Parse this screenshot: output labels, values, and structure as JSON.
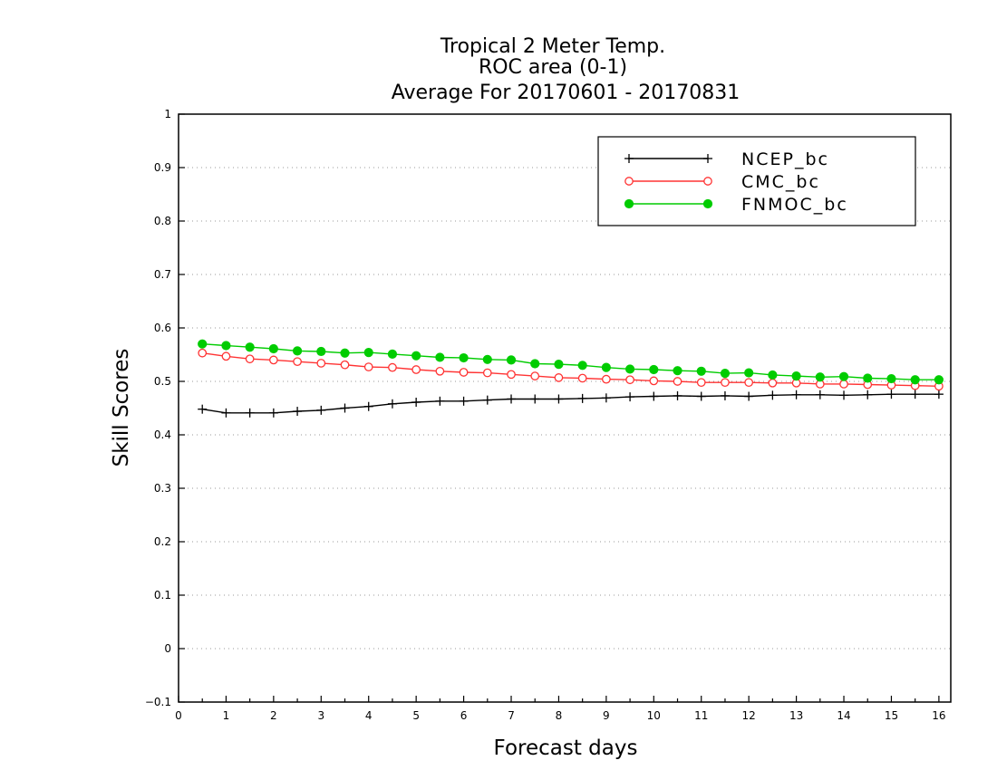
{
  "chart_data": {
    "type": "line",
    "title_lines": [
      "Tropical 2 Meter Temp.",
      "ROC area (0-1)",
      "Average For 20170601 - 20170831"
    ],
    "xlabel": "Forecast days",
    "ylabel": "Skill Scores",
    "xlim": [
      0,
      16.25
    ],
    "ylim": [
      -0.1,
      1
    ],
    "x_ticks": [
      "0",
      "1",
      "2",
      "3",
      "4",
      "5",
      "6",
      "7",
      "8",
      "9",
      "10",
      "11",
      "12",
      "13",
      "14",
      "15",
      "16"
    ],
    "y_ticks": [
      "−0.1",
      "0",
      "0.1",
      "0.2",
      "0.3",
      "0.4",
      "0.5",
      "0.6",
      "0.7",
      "0.8",
      "0.9",
      "1"
    ],
    "grid": "horizontal dotted",
    "legend_position": "top-right",
    "x": [
      0.5,
      1,
      1.5,
      2,
      2.5,
      3,
      3.5,
      4,
      4.5,
      5,
      5.5,
      6,
      6.5,
      7,
      7.5,
      8,
      8.5,
      9,
      9.5,
      10,
      10.5,
      11,
      11.5,
      12,
      12.5,
      13,
      13.5,
      14,
      14.5,
      15,
      15.5,
      16
    ],
    "series": [
      {
        "name": "NCEP_bc",
        "color": "#000000",
        "marker": "plus",
        "values": [
          0.448,
          0.441,
          0.441,
          0.441,
          0.444,
          0.446,
          0.45,
          0.453,
          0.458,
          0.461,
          0.463,
          0.463,
          0.465,
          0.467,
          0.467,
          0.467,
          0.468,
          0.469,
          0.471,
          0.472,
          0.473,
          0.472,
          0.473,
          0.472,
          0.474,
          0.475,
          0.475,
          0.474,
          0.475,
          0.476,
          0.476,
          0.476
        ]
      },
      {
        "name": "CMC_bc",
        "color": "#ff3333",
        "marker": "open-circle",
        "values": [
          0.553,
          0.547,
          0.542,
          0.54,
          0.537,
          0.534,
          0.531,
          0.527,
          0.526,
          0.522,
          0.519,
          0.517,
          0.516,
          0.513,
          0.51,
          0.507,
          0.506,
          0.504,
          0.503,
          0.501,
          0.5,
          0.498,
          0.498,
          0.498,
          0.497,
          0.497,
          0.495,
          0.495,
          0.494,
          0.493,
          0.492,
          0.491
        ]
      },
      {
        "name": "FNMOC_bc",
        "color": "#00cc00",
        "marker": "filled-circle",
        "values": [
          0.57,
          0.567,
          0.564,
          0.561,
          0.557,
          0.556,
          0.553,
          0.554,
          0.551,
          0.548,
          0.545,
          0.544,
          0.541,
          0.54,
          0.533,
          0.532,
          0.53,
          0.526,
          0.523,
          0.522,
          0.52,
          0.519,
          0.515,
          0.516,
          0.512,
          0.51,
          0.508,
          0.509,
          0.506,
          0.505,
          0.503,
          0.503
        ]
      }
    ]
  }
}
